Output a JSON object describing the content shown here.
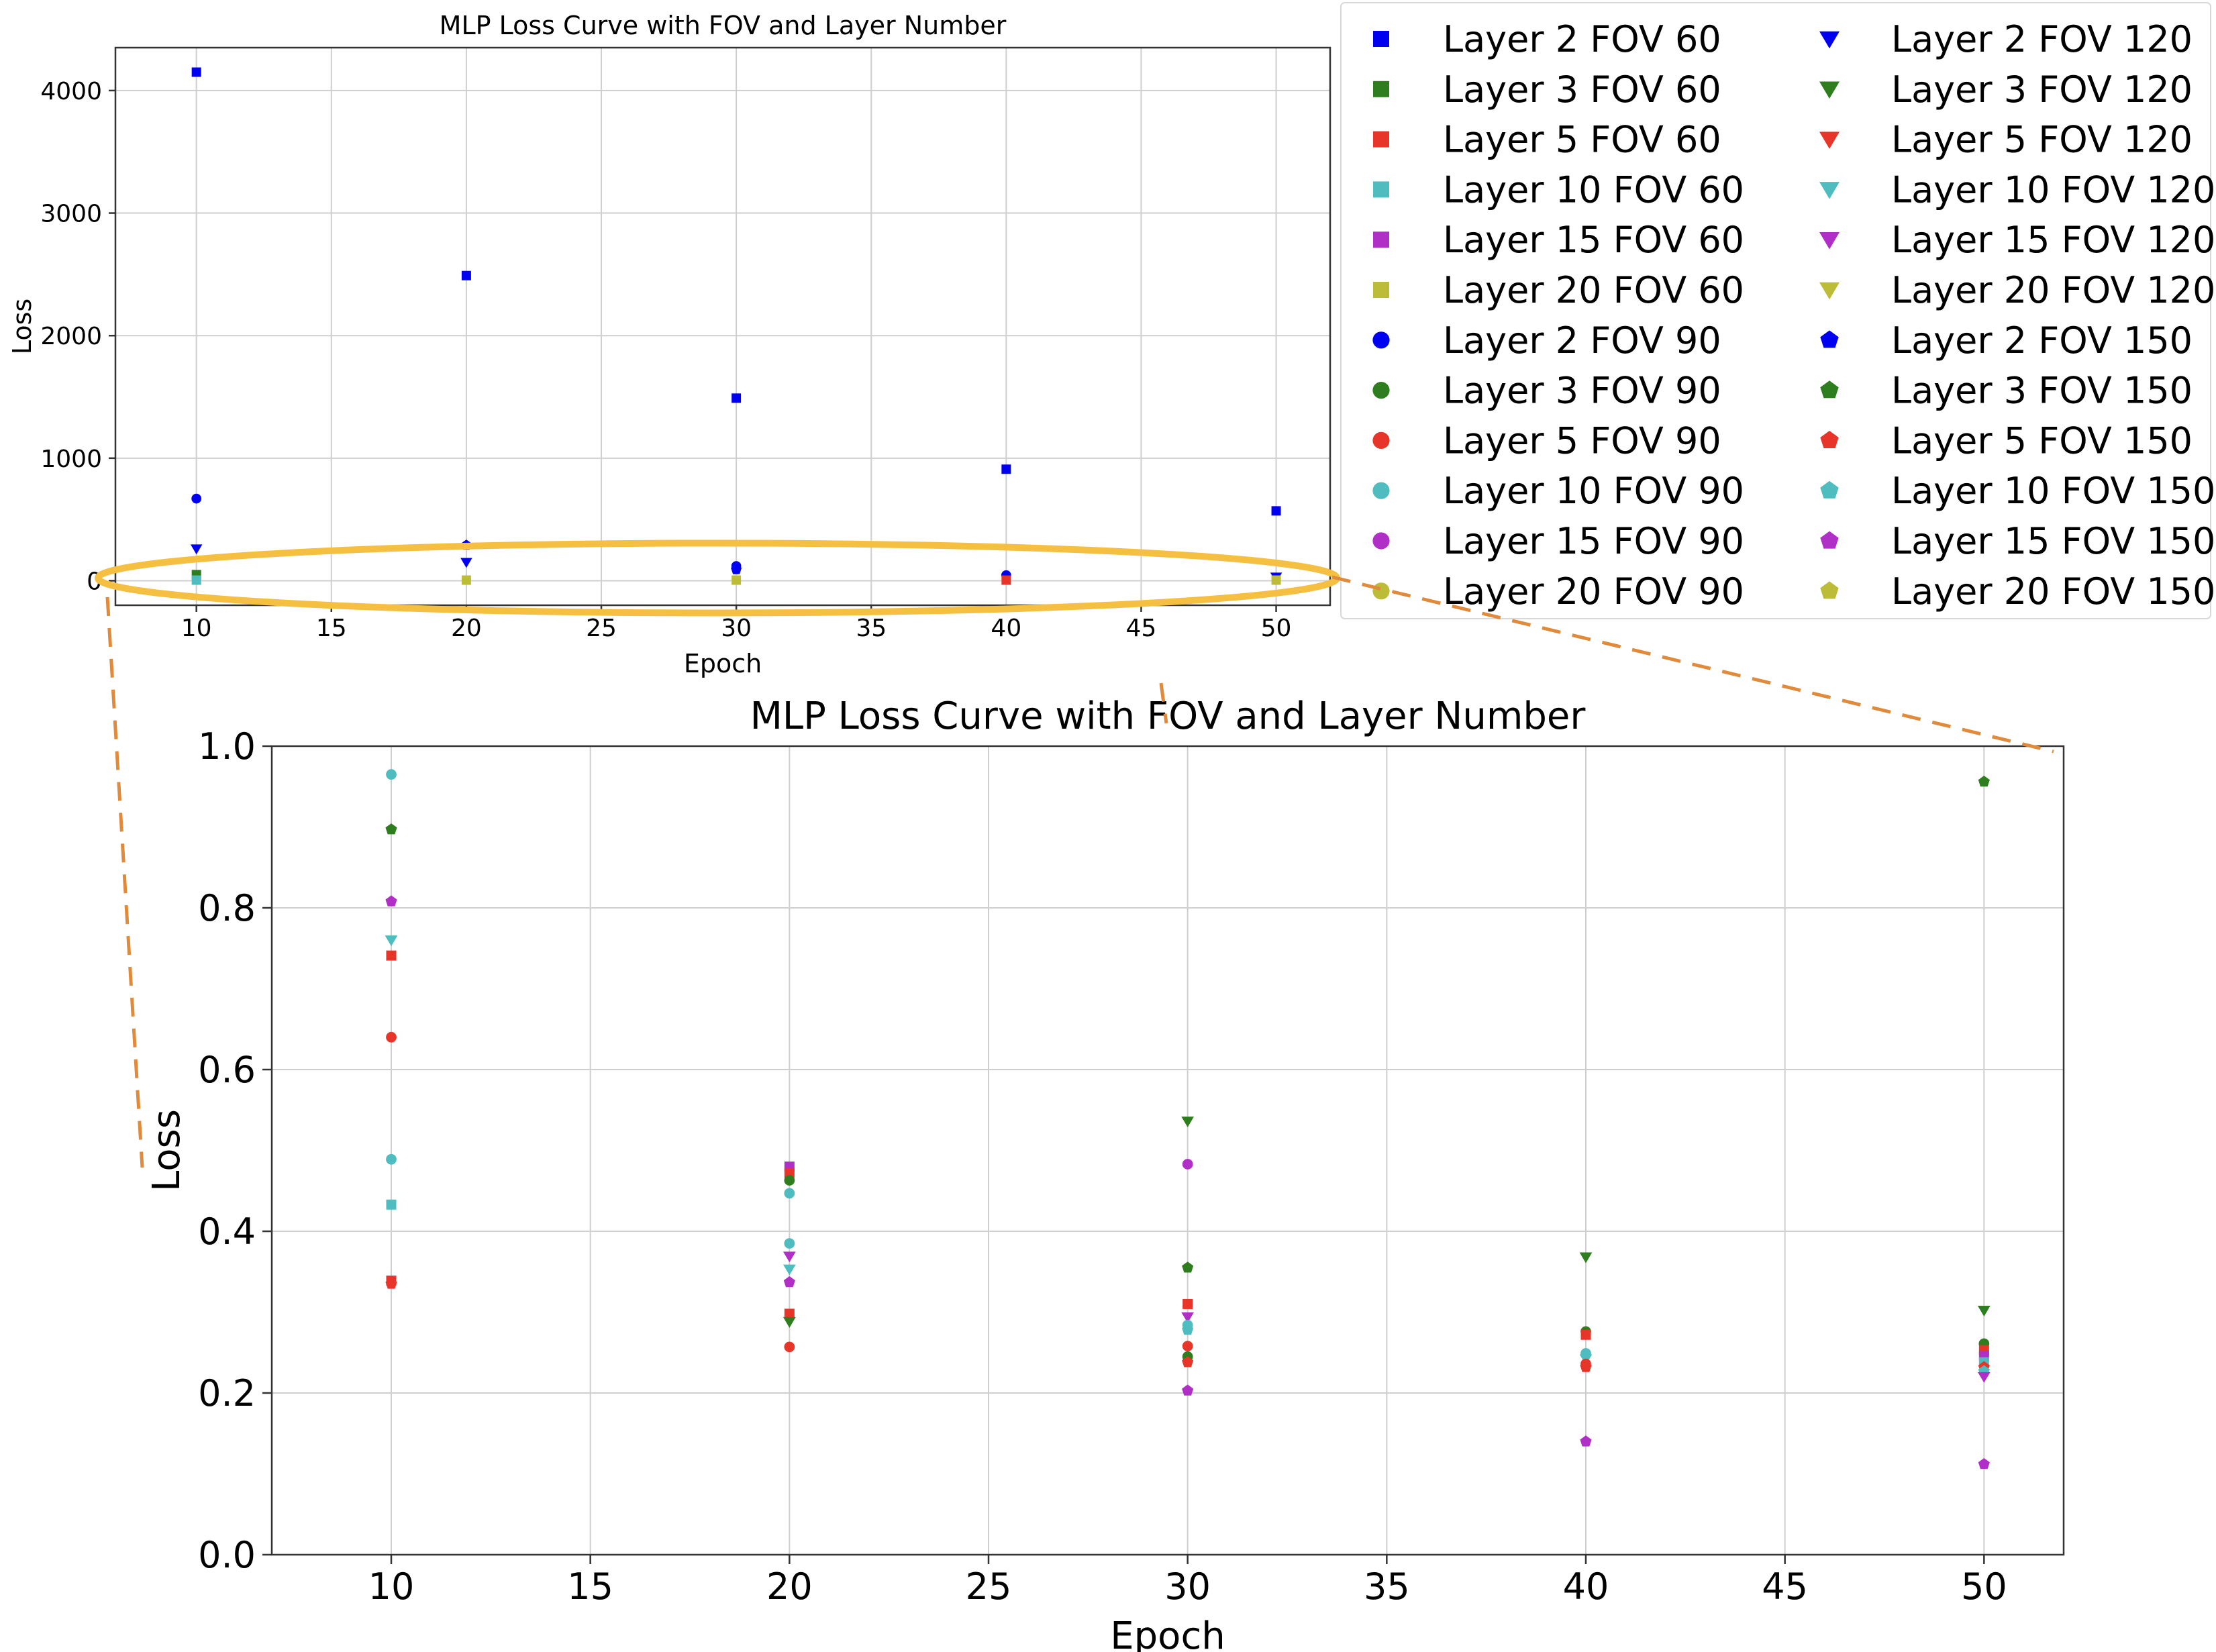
{
  "chart_data": [
    {
      "id": "overview",
      "type": "scatter",
      "title": "MLP Loss Curve with FOV and Layer Number",
      "xlabel": "Epoch",
      "ylabel": "Loss",
      "xlim": [
        7,
        52
      ],
      "ylim": [
        -200,
        4350
      ],
      "xticks": [
        10,
        15,
        20,
        25,
        30,
        35,
        40,
        45,
        50
      ],
      "yticks": [
        0,
        1000,
        2000,
        3000,
        4000
      ],
      "grid": true,
      "points": [
        {
          "series": "Layer 2 FOV 60",
          "x": 10,
          "y": 4150
        },
        {
          "series": "Layer 2 FOV 60",
          "x": 20,
          "y": 2490
        },
        {
          "series": "Layer 2 FOV 60",
          "x": 30,
          "y": 1490
        },
        {
          "series": "Layer 2 FOV 60",
          "x": 40,
          "y": 910
        },
        {
          "series": "Layer 2 FOV 60",
          "x": 50,
          "y": 570
        },
        {
          "series": "Layer 2 FOV 90",
          "x": 10,
          "y": 670
        },
        {
          "series": "Layer 2 FOV 120",
          "x": 10,
          "y": 260
        },
        {
          "series": "Layer 2 FOV 120",
          "x": 20,
          "y": 150
        },
        {
          "series": "Layer 2 FOV 150",
          "x": 20,
          "y": 290
        },
        {
          "series": "Layer 2 FOV 90",
          "x": 30,
          "y": 120
        },
        {
          "series": "Layer 2 FOV 150",
          "x": 30,
          "y": 90
        },
        {
          "series": "Layer 2 FOV 90",
          "x": 40,
          "y": 45
        },
        {
          "series": "Layer 2 FOV 120",
          "x": 50,
          "y": 30
        },
        {
          "series": "Layer 3 FOV 60",
          "x": 10,
          "y": 50
        },
        {
          "series": "Layer 10 FOV 60",
          "x": 10,
          "y": 5
        },
        {
          "series": "Layer 20 FOV 60",
          "x": 20,
          "y": 5
        },
        {
          "series": "Layer 20 FOV 60",
          "x": 30,
          "y": 5
        },
        {
          "series": "Layer 5 FOV 60",
          "x": 40,
          "y": 5
        },
        {
          "series": "Layer 20 FOV 60",
          "x": 50,
          "y": 5
        }
      ]
    },
    {
      "id": "zoom",
      "type": "scatter",
      "title": "MLP Loss Curve with FOV and Layer Number",
      "xlabel": "Epoch",
      "ylabel": "Loss",
      "xlim": [
        7,
        52
      ],
      "ylim": [
        0.0,
        1.0
      ],
      "xticks": [
        10,
        15,
        20,
        25,
        30,
        35,
        40,
        45,
        50
      ],
      "yticks": [
        "0.0",
        "0.2",
        "0.4",
        "0.6",
        "0.8",
        "1.0"
      ],
      "grid": true,
      "points": [
        {
          "series": "Layer 10 FOV 90",
          "x": 10,
          "y": 0.965
        },
        {
          "series": "Layer 3 FOV 150",
          "x": 10,
          "y": 0.897
        },
        {
          "series": "Layer 15 FOV 150",
          "x": 10,
          "y": 0.808
        },
        {
          "series": "Layer 10 FOV 120",
          "x": 10,
          "y": 0.76
        },
        {
          "series": "Layer 5 FOV 60",
          "x": 10,
          "y": 0.741
        },
        {
          "series": "Layer 5 FOV 90",
          "x": 10,
          "y": 0.64
        },
        {
          "series": "Layer 10 FOV 90",
          "x": 10,
          "y": 0.489
        },
        {
          "series": "Layer 10 FOV 60",
          "x": 10,
          "y": 0.433
        },
        {
          "series": "Layer 5 FOV 60",
          "x": 10,
          "y": 0.339
        },
        {
          "series": "Layer 5 FOV 150",
          "x": 10,
          "y": 0.335
        },
        {
          "series": "Layer 15 FOV 60",
          "x": 20,
          "y": 0.48
        },
        {
          "series": "Layer 5 FOV 60",
          "x": 20,
          "y": 0.472
        },
        {
          "series": "Layer 3 FOV 90",
          "x": 20,
          "y": 0.463
        },
        {
          "series": "Layer 10 FOV 90",
          "x": 20,
          "y": 0.447
        },
        {
          "series": "Layer 10 FOV 90",
          "x": 20,
          "y": 0.385
        },
        {
          "series": "Layer 15 FOV 120",
          "x": 20,
          "y": 0.369
        },
        {
          "series": "Layer 10 FOV 120",
          "x": 20,
          "y": 0.353
        },
        {
          "series": "Layer 15 FOV 150",
          "x": 20,
          "y": 0.337
        },
        {
          "series": "Layer 5 FOV 60",
          "x": 20,
          "y": 0.298
        },
        {
          "series": "Layer 3 FOV 120",
          "x": 20,
          "y": 0.288
        },
        {
          "series": "Layer 5 FOV 90",
          "x": 20,
          "y": 0.257
        },
        {
          "series": "Layer 3 FOV 120",
          "x": 30,
          "y": 0.536
        },
        {
          "series": "Layer 15 FOV 90",
          "x": 30,
          "y": 0.483
        },
        {
          "series": "Layer 3 FOV 150",
          "x": 30,
          "y": 0.355
        },
        {
          "series": "Layer 5 FOV 60",
          "x": 30,
          "y": 0.31
        },
        {
          "series": "Layer 15 FOV 120",
          "x": 30,
          "y": 0.294
        },
        {
          "series": "Layer 10 FOV 90",
          "x": 30,
          "y": 0.284
        },
        {
          "series": "Layer 10 FOV 150",
          "x": 30,
          "y": 0.278
        },
        {
          "series": "Layer 5 FOV 90",
          "x": 30,
          "y": 0.258
        },
        {
          "series": "Layer 3 FOV 90",
          "x": 30,
          "y": 0.245
        },
        {
          "series": "Layer 5 FOV 150",
          "x": 30,
          "y": 0.238
        },
        {
          "series": "Layer 15 FOV 150",
          "x": 30,
          "y": 0.203
        },
        {
          "series": "Layer 3 FOV 120",
          "x": 40,
          "y": 0.368
        },
        {
          "series": "Layer 3 FOV 90",
          "x": 40,
          "y": 0.276
        },
        {
          "series": "Layer 5 FOV 60",
          "x": 40,
          "y": 0.272
        },
        {
          "series": "Layer 10 FOV 90",
          "x": 40,
          "y": 0.249
        },
        {
          "series": "Layer 10 FOV 120",
          "x": 40,
          "y": 0.242
        },
        {
          "series": "Layer 5 FOV 90",
          "x": 40,
          "y": 0.236
        },
        {
          "series": "Layer 5 FOV 150",
          "x": 40,
          "y": 0.232
        },
        {
          "series": "Layer 15 FOV 150",
          "x": 40,
          "y": 0.14
        },
        {
          "series": "Layer 3 FOV 150",
          "x": 50,
          "y": 0.956
        },
        {
          "series": "Layer 3 FOV 120",
          "x": 50,
          "y": 0.302
        },
        {
          "series": "Layer 3 FOV 90",
          "x": 50,
          "y": 0.261
        },
        {
          "series": "Layer 5 FOV 60",
          "x": 50,
          "y": 0.253
        },
        {
          "series": "Layer 15 FOV 60",
          "x": 50,
          "y": 0.246
        },
        {
          "series": "Layer 10 FOV 60",
          "x": 50,
          "y": 0.238
        },
        {
          "series": "Layer 5 FOV 150",
          "x": 50,
          "y": 0.232
        },
        {
          "series": "Layer 10 FOV 150",
          "x": 50,
          "y": 0.227
        },
        {
          "series": "Layer 15 FOV 120",
          "x": 50,
          "y": 0.22
        },
        {
          "series": "Layer 15 FOV 150",
          "x": 50,
          "y": 0.112
        }
      ]
    }
  ],
  "legend": {
    "placement": "top-right",
    "columns": [
      [
        {
          "name": "Layer 2 FOV 60",
          "marker": "square",
          "color": "#0000f0"
        },
        {
          "name": "Layer 3 FOV 60",
          "marker": "square",
          "color": "#2e7d1e"
        },
        {
          "name": "Layer 5 FOV 60",
          "marker": "square",
          "color": "#e8352a"
        },
        {
          "name": "Layer 10 FOV 60",
          "marker": "square",
          "color": "#4fbdbf"
        },
        {
          "name": "Layer 15 FOV 60",
          "marker": "square",
          "color": "#b02fc6"
        },
        {
          "name": "Layer 20 FOV 60",
          "marker": "square",
          "color": "#bcbc38"
        },
        {
          "name": "Layer 2 FOV 90",
          "marker": "circle",
          "color": "#0000f0"
        },
        {
          "name": "Layer 3 FOV 90",
          "marker": "circle",
          "color": "#2e7d1e"
        },
        {
          "name": "Layer 5 FOV 90",
          "marker": "circle",
          "color": "#e8352a"
        },
        {
          "name": "Layer 10 FOV 90",
          "marker": "circle",
          "color": "#4fbdbf"
        },
        {
          "name": "Layer 15 FOV 90",
          "marker": "circle",
          "color": "#b02fc6"
        },
        {
          "name": "Layer 20 FOV 90",
          "marker": "circle",
          "color": "#bcbc38"
        }
      ],
      [
        {
          "name": "Layer 2 FOV 120",
          "marker": "triangle-down",
          "color": "#0000f0"
        },
        {
          "name": "Layer 3 FOV 120",
          "marker": "triangle-down",
          "color": "#2e7d1e"
        },
        {
          "name": "Layer 5 FOV 120",
          "marker": "triangle-down",
          "color": "#e8352a"
        },
        {
          "name": "Layer 10 FOV 120",
          "marker": "triangle-down",
          "color": "#4fbdbf"
        },
        {
          "name": "Layer 15 FOV 120",
          "marker": "triangle-down",
          "color": "#b02fc6"
        },
        {
          "name": "Layer 20 FOV 120",
          "marker": "triangle-down",
          "color": "#bcbc38"
        },
        {
          "name": "Layer 2 FOV 150",
          "marker": "pentagon",
          "color": "#0000f0"
        },
        {
          "name": "Layer 3 FOV 150",
          "marker": "pentagon",
          "color": "#2e7d1e"
        },
        {
          "name": "Layer 5 FOV 150",
          "marker": "pentagon",
          "color": "#e8352a"
        },
        {
          "name": "Layer 10 FOV 150",
          "marker": "pentagon",
          "color": "#4fbdbf"
        },
        {
          "name": "Layer 15 FOV 150",
          "marker": "pentagon",
          "color": "#b02fc6"
        },
        {
          "name": "Layer 20 FOV 150",
          "marker": "pentagon",
          "color": "#bcbc38"
        }
      ]
    ]
  },
  "zoom_callout": {
    "highlight_color": "#f5bf42",
    "connector_color": "#e08a3c"
  }
}
